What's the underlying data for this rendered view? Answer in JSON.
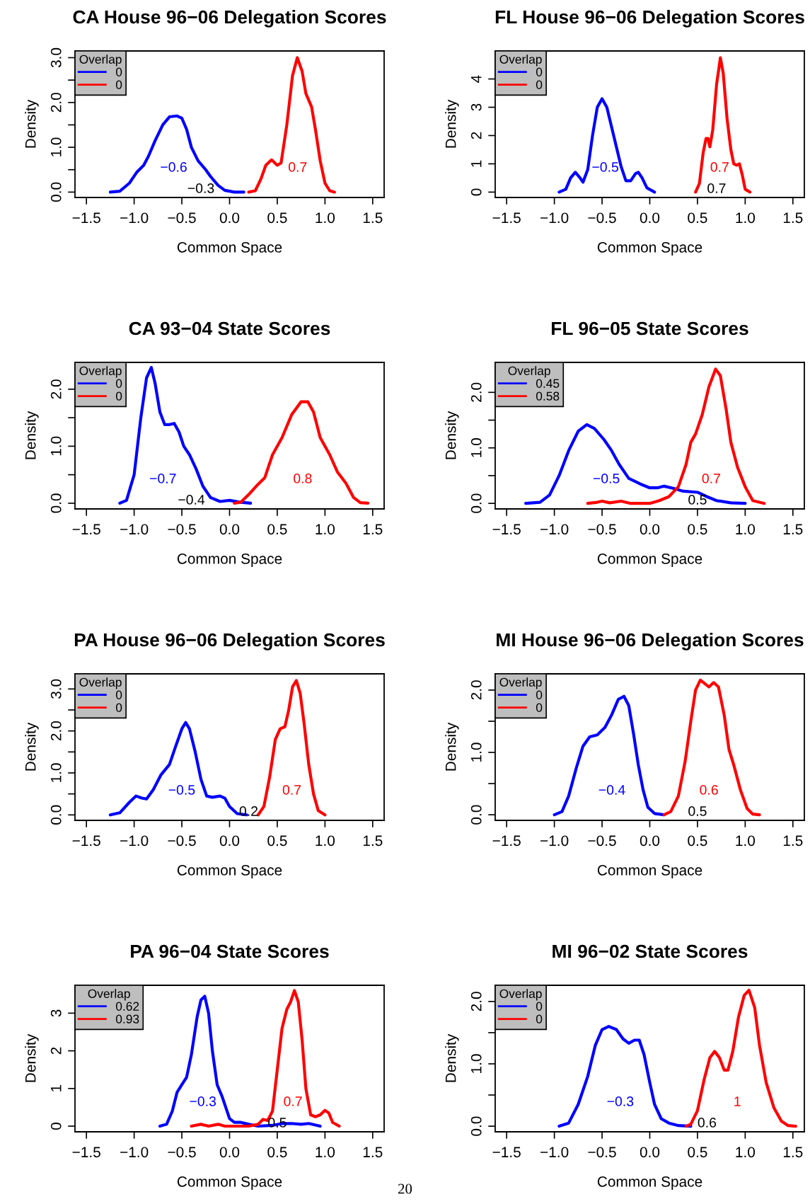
{
  "chart_data": [
    {
      "type": "line",
      "title": "CA House 96−06 Delegation Scores",
      "xlabel": "Common Space",
      "ylabel": "Density",
      "legend_title": "Overlap",
      "legend": "top left",
      "xlim": [
        -1.62,
        1.62
      ],
      "xticks": [
        {
          "value": -1.5,
          "label": "−1.5"
        },
        {
          "value": -1.0,
          "label": "−1.0"
        },
        {
          "value": -0.5,
          "label": "−0.5"
        },
        {
          "value": 0,
          "label": "0.0"
        },
        {
          "value": 0.5,
          "label": "0.5"
        },
        {
          "value": 1.0,
          "label": "1.0"
        },
        {
          "value": 1.5,
          "label": "1.5"
        }
      ],
      "ylim": [
        -0.12,
        3.15
      ],
      "yticks": [
        {
          "value": 0,
          "label": "0.0"
        },
        {
          "value": 0.5,
          "label": null
        },
        {
          "value": 1.0,
          "label": "1.0"
        },
        {
          "value": 1.5,
          "label": null
        },
        {
          "value": 2.0,
          "label": "2.0"
        },
        {
          "value": 2.5,
          "label": null
        },
        {
          "value": 3.0,
          "label": "3.0"
        }
      ],
      "series": [
        {
          "name": "0",
          "color": "#0000ff",
          "x": [
            -1.25,
            -1.15,
            -1.05,
            -0.97,
            -0.9,
            -0.85,
            -0.78,
            -0.7,
            -0.63,
            -0.55,
            -0.5,
            -0.45,
            -0.4,
            -0.33,
            -0.25,
            -0.2,
            -0.12,
            -0.05,
            0.05,
            0.15
          ],
          "values": [
            0,
            0.02,
            0.2,
            0.45,
            0.6,
            0.8,
            1.15,
            1.5,
            1.68,
            1.7,
            1.65,
            1.4,
            1.0,
            0.7,
            0.5,
            0.35,
            0.15,
            0.04,
            0.0,
            0
          ]
        },
        {
          "name": "0",
          "color": "#ff0000",
          "x": [
            0.2,
            0.27,
            0.33,
            0.38,
            0.44,
            0.5,
            0.54,
            0.6,
            0.66,
            0.71,
            0.76,
            0.8,
            0.86,
            0.9,
            0.95,
            1.0,
            1.05,
            1.1
          ],
          "values": [
            0,
            0.03,
            0.3,
            0.6,
            0.72,
            0.6,
            0.65,
            1.5,
            2.6,
            3.0,
            2.7,
            2.2,
            1.9,
            1.4,
            0.7,
            0.2,
            0.03,
            0
          ]
        }
      ],
      "annotations": [
        "−0.6",
        "0.7",
        "−0.3"
      ]
    },
    {
      "type": "line",
      "title": "FL House 96−06 Delegation Scores",
      "xlabel": "Common Space",
      "ylabel": "Density",
      "legend_title": "Overlap",
      "legend": "top left",
      "xlim": [
        -1.62,
        1.62
      ],
      "xticks": [
        {
          "value": -1.5,
          "label": "−1.5"
        },
        {
          "value": -1.0,
          "label": "−1.0"
        },
        {
          "value": -0.5,
          "label": "−0.5"
        },
        {
          "value": 0,
          "label": "0.0"
        },
        {
          "value": 0.5,
          "label": "0.5"
        },
        {
          "value": 1.0,
          "label": "1.0"
        },
        {
          "value": 1.5,
          "label": "1.5"
        }
      ],
      "ylim": [
        -0.19,
        4.99
      ],
      "yticks": [
        0,
        1,
        2,
        3,
        4
      ],
      "series": [
        {
          "name": "0",
          "color": "#0000ff",
          "x": [
            -0.95,
            -0.88,
            -0.83,
            -0.78,
            -0.73,
            -0.7,
            -0.65,
            -0.6,
            -0.55,
            -0.5,
            -0.45,
            -0.4,
            -0.35,
            -0.3,
            -0.25,
            -0.2,
            -0.15,
            -0.12,
            -0.08,
            -0.03,
            0.05
          ],
          "values": [
            0,
            0.1,
            0.5,
            0.7,
            0.5,
            0.35,
            0.8,
            2.0,
            3.0,
            3.3,
            3.0,
            2.3,
            1.6,
            0.9,
            0.4,
            0.4,
            0.65,
            0.7,
            0.5,
            0.15,
            0
          ]
        },
        {
          "name": "0",
          "color": "#ff0000",
          "x": [
            0.48,
            0.52,
            0.56,
            0.59,
            0.61,
            0.63,
            0.66,
            0.7,
            0.74,
            0.77,
            0.81,
            0.85,
            0.88,
            0.91,
            0.94,
            0.97,
            1.0,
            1.05
          ],
          "values": [
            0,
            0.3,
            1.4,
            1.9,
            1.9,
            1.6,
            2.2,
            3.8,
            4.75,
            4.2,
            2.6,
            1.5,
            1.0,
            0.95,
            1.0,
            0.6,
            0.1,
            0
          ]
        }
      ],
      "annotations": [
        "−0.5",
        "0.7",
        "0.7"
      ]
    },
    {
      "type": "line",
      "title": "CA 93−04 State Scores",
      "xlabel": "Common Space",
      "ylabel": "Density",
      "legend_title": "Overlap",
      "legend": "top left",
      "xlim": [
        -1.62,
        1.62
      ],
      "xticks": [
        {
          "value": -1.5,
          "label": "−1.5"
        },
        {
          "value": -1.0,
          "label": "−1.0"
        },
        {
          "value": -0.5,
          "label": "−0.5"
        },
        {
          "value": 0,
          "label": "0.0"
        },
        {
          "value": 0.5,
          "label": "0.5"
        },
        {
          "value": 1.0,
          "label": "1.0"
        },
        {
          "value": 1.5,
          "label": "1.5"
        }
      ],
      "ylim": [
        -0.1,
        2.47
      ],
      "yticks": [
        {
          "value": 0,
          "label": "0.0"
        },
        {
          "value": 0.5,
          "label": null
        },
        {
          "value": 1.0,
          "label": "1.0"
        },
        {
          "value": 1.5,
          "label": null
        },
        {
          "value": 2.0,
          "label": "2.0"
        }
      ],
      "series": [
        {
          "name": "0",
          "color": "#0000ff",
          "x": [
            -1.15,
            -1.08,
            -1.0,
            -0.93,
            -0.87,
            -0.82,
            -0.78,
            -0.73,
            -0.68,
            -0.63,
            -0.58,
            -0.53,
            -0.48,
            -0.42,
            -0.35,
            -0.28,
            -0.2,
            -0.1,
            0.0,
            0.1,
            0.22
          ],
          "values": [
            0,
            0.05,
            0.5,
            1.5,
            2.2,
            2.38,
            2.1,
            1.6,
            1.38,
            1.38,
            1.4,
            1.25,
            1.0,
            0.85,
            0.6,
            0.3,
            0.1,
            0.03,
            0.05,
            0.02,
            0
          ]
        },
        {
          "name": "0",
          "color": "#ff0000",
          "x": [
            0.05,
            0.12,
            0.2,
            0.28,
            0.37,
            0.45,
            0.55,
            0.65,
            0.75,
            0.82,
            0.88,
            0.95,
            1.05,
            1.13,
            1.22,
            1.3,
            1.37,
            1.45
          ],
          "values": [
            0,
            0.02,
            0.15,
            0.3,
            0.45,
            0.85,
            1.15,
            1.55,
            1.78,
            1.78,
            1.6,
            1.15,
            0.85,
            0.55,
            0.35,
            0.1,
            0.01,
            0
          ]
        }
      ],
      "annotations": [
        "−0.7",
        "0.8",
        "−0.4"
      ]
    },
    {
      "type": "line",
      "title": "FL 96−05 State Scores",
      "xlabel": "Common Space",
      "ylabel": "Density",
      "legend_title": "Overlap",
      "legend": "top left",
      "xlim": [
        -1.62,
        1.62
      ],
      "xticks": [
        {
          "value": -1.5,
          "label": "−1.5"
        },
        {
          "value": -1.0,
          "label": "−1.0"
        },
        {
          "value": -0.5,
          "label": "−0.5"
        },
        {
          "value": 0,
          "label": "0.0"
        },
        {
          "value": 0.5,
          "label": "0.5"
        },
        {
          "value": 1.0,
          "label": "1.0"
        },
        {
          "value": 1.5,
          "label": "1.5"
        }
      ],
      "ylim": [
        -0.1,
        2.54
      ],
      "yticks": [
        {
          "value": 0,
          "label": "0.0"
        },
        {
          "value": 0.5,
          "label": null
        },
        {
          "value": 1.0,
          "label": "1.0"
        },
        {
          "value": 1.5,
          "label": null
        },
        {
          "value": 2.0,
          "label": "2.0"
        }
      ],
      "series": [
        {
          "name": "0.45",
          "color": "#0000ff",
          "x": [
            -1.3,
            -1.15,
            -1.05,
            -0.95,
            -0.85,
            -0.75,
            -0.66,
            -0.58,
            -0.48,
            -0.4,
            -0.32,
            -0.22,
            -0.1,
            0.0,
            0.08,
            0.15,
            0.25,
            0.35,
            0.5,
            0.6,
            0.7,
            0.85,
            1.0
          ],
          "values": [
            0,
            0.02,
            0.15,
            0.5,
            0.95,
            1.3,
            1.42,
            1.35,
            1.15,
            0.95,
            0.7,
            0.45,
            0.35,
            0.28,
            0.28,
            0.31,
            0.27,
            0.22,
            0.2,
            0.12,
            0.05,
            0.01,
            0
          ]
        },
        {
          "name": "0.58",
          "color": "#ff0000",
          "x": [
            -0.65,
            -0.55,
            -0.5,
            -0.42,
            -0.3,
            -0.2,
            0.0,
            0.1,
            0.2,
            0.3,
            0.38,
            0.43,
            0.48,
            0.55,
            0.62,
            0.69,
            0.74,
            0.8,
            0.85,
            0.92,
            1.0,
            1.08,
            1.2
          ],
          "values": [
            0,
            0.02,
            0.04,
            0.01,
            0.04,
            0.0,
            0.0,
            0.05,
            0.12,
            0.3,
            0.7,
            1.1,
            1.25,
            1.6,
            2.1,
            2.42,
            2.3,
            1.7,
            1.1,
            0.65,
            0.3,
            0.05,
            0
          ]
        }
      ],
      "annotations": [
        "−0.5",
        "0.7",
        "0.5"
      ]
    },
    {
      "type": "line",
      "title": "PA House 96−06 Delegation Scores",
      "xlabel": "Common Space",
      "ylabel": "Density",
      "legend_title": "Overlap",
      "legend": "top left",
      "xlim": [
        -1.62,
        1.62
      ],
      "xticks": [
        {
          "value": -1.5,
          "label": "−1.5"
        },
        {
          "value": -1.0,
          "label": "−1.0"
        },
        {
          "value": -0.5,
          "label": "−0.5"
        },
        {
          "value": 0,
          "label": "0.0"
        },
        {
          "value": 0.5,
          "label": "0.5"
        },
        {
          "value": 1.0,
          "label": "1.0"
        },
        {
          "value": 1.5,
          "label": "1.5"
        }
      ],
      "ylim": [
        -0.13,
        3.36
      ],
      "yticks": [
        {
          "value": 0,
          "label": "0.0"
        },
        {
          "value": 0.5,
          "label": null
        },
        {
          "value": 1.0,
          "label": "1.0"
        },
        {
          "value": 1.5,
          "label": null
        },
        {
          "value": 2.0,
          "label": "2.0"
        },
        {
          "value": 2.5,
          "label": null
        },
        {
          "value": 3.0,
          "label": "3.0"
        }
      ],
      "series": [
        {
          "name": "0",
          "color": "#0000ff",
          "x": [
            -1.25,
            -1.15,
            -1.05,
            -0.98,
            -0.92,
            -0.87,
            -0.8,
            -0.72,
            -0.63,
            -0.57,
            -0.5,
            -0.46,
            -0.42,
            -0.36,
            -0.3,
            -0.24,
            -0.18,
            -0.1,
            -0.05,
            0.0,
            0.08,
            0.18
          ],
          "values": [
            0,
            0.05,
            0.3,
            0.45,
            0.4,
            0.38,
            0.6,
            0.95,
            1.2,
            1.6,
            2.05,
            2.2,
            2.05,
            1.5,
            0.85,
            0.45,
            0.42,
            0.45,
            0.4,
            0.2,
            0.03,
            0
          ]
        },
        {
          "name": "0",
          "color": "#ff0000",
          "x": [
            0.3,
            0.36,
            0.42,
            0.48,
            0.53,
            0.58,
            0.62,
            0.66,
            0.7,
            0.74,
            0.78,
            0.83,
            0.88,
            0.93,
            1.0
          ],
          "values": [
            0,
            0.2,
            0.9,
            1.8,
            2.05,
            2.1,
            2.5,
            3.05,
            3.2,
            2.9,
            2.2,
            1.2,
            0.5,
            0.1,
            0
          ]
        }
      ],
      "annotations": [
        "−0.5",
        "0.7",
        "0.2"
      ]
    },
    {
      "type": "line",
      "title": "MI House 96−06 Delegation Scores",
      "xlabel": "Common Space",
      "ylabel": "Density",
      "legend_title": "Overlap",
      "legend": "top left",
      "xlim": [
        -1.62,
        1.62
      ],
      "xticks": [
        {
          "value": -1.5,
          "label": "−1.5"
        },
        {
          "value": -1.0,
          "label": "−1.0"
        },
        {
          "value": -0.5,
          "label": "−0.5"
        },
        {
          "value": 0,
          "label": "0.0"
        },
        {
          "value": 0.5,
          "label": "0.5"
        },
        {
          "value": 1.0,
          "label": "1.0"
        },
        {
          "value": 1.5,
          "label": "1.5"
        }
      ],
      "ylim": [
        -0.09,
        2.26
      ],
      "yticks": [
        {
          "value": 0,
          "label": "0.0"
        },
        {
          "value": 0.5,
          "label": null
        },
        {
          "value": 1.0,
          "label": "1.0"
        },
        {
          "value": 1.5,
          "label": null
        },
        {
          "value": 2.0,
          "label": "2.0"
        }
      ],
      "series": [
        {
          "name": "0",
          "color": "#0000ff",
          "x": [
            -1.0,
            -0.92,
            -0.85,
            -0.77,
            -0.7,
            -0.63,
            -0.55,
            -0.47,
            -0.4,
            -0.33,
            -0.27,
            -0.22,
            -0.17,
            -0.12,
            -0.07,
            -0.02,
            0.05,
            0.15
          ],
          "values": [
            0,
            0.05,
            0.3,
            0.75,
            1.1,
            1.25,
            1.28,
            1.4,
            1.6,
            1.85,
            1.9,
            1.75,
            1.3,
            0.8,
            0.4,
            0.12,
            0.02,
            0
          ]
        },
        {
          "name": "0",
          "color": "#ff0000",
          "x": [
            0.15,
            0.22,
            0.3,
            0.37,
            0.43,
            0.48,
            0.53,
            0.58,
            0.62,
            0.67,
            0.72,
            0.78,
            0.83,
            0.88,
            0.95,
            1.02,
            1.08,
            1.15
          ],
          "values": [
            0,
            0.05,
            0.3,
            0.85,
            1.5,
            2.0,
            2.16,
            2.1,
            2.05,
            2.12,
            2.05,
            1.6,
            1.05,
            0.8,
            0.4,
            0.1,
            0.01,
            0
          ]
        }
      ],
      "annotations": [
        "−0.4",
        "0.6",
        "0.5"
      ]
    },
    {
      "type": "line",
      "title": "PA 96−04 State Scores",
      "xlabel": "Common Space",
      "ylabel": "Density",
      "legend_title": "Overlap",
      "legend": "top left",
      "xlim": [
        -1.62,
        1.62
      ],
      "xticks": [
        {
          "value": -1.5,
          "label": "−1.5"
        },
        {
          "value": -1.0,
          "label": "−1.0"
        },
        {
          "value": -0.5,
          "label": "−0.5"
        },
        {
          "value": 0,
          "label": "0.0"
        },
        {
          "value": 0.5,
          "label": "0.5"
        },
        {
          "value": 1.0,
          "label": "1.0"
        },
        {
          "value": 1.5,
          "label": "1.5"
        }
      ],
      "ylim": [
        -0.15,
        3.74
      ],
      "yticks": [
        0,
        1,
        2,
        3
      ],
      "series": [
        {
          "name": "0.62",
          "color": "#0000ff",
          "x": [
            -0.73,
            -0.66,
            -0.6,
            -0.55,
            -0.5,
            -0.45,
            -0.4,
            -0.34,
            -0.3,
            -0.26,
            -0.22,
            -0.18,
            -0.13,
            -0.08,
            -0.04,
            0.0,
            0.05,
            0.12,
            0.2,
            0.3,
            0.45,
            0.55,
            0.65,
            0.75,
            0.83,
            0.95
          ],
          "values": [
            0,
            0.05,
            0.4,
            0.9,
            1.1,
            1.3,
            1.9,
            2.9,
            3.35,
            3.45,
            3.0,
            2.0,
            1.1,
            0.8,
            0.5,
            0.2,
            0.1,
            0.1,
            0.05,
            0.0,
            0.02,
            0.07,
            0.07,
            0.05,
            0.07,
            0
          ]
        },
        {
          "name": "0.93",
          "color": "#ff0000",
          "x": [
            -0.4,
            -0.3,
            -0.22,
            -0.12,
            -0.05,
            0.1,
            0.2,
            0.3,
            0.35,
            0.4,
            0.45,
            0.5,
            0.55,
            0.6,
            0.64,
            0.68,
            0.72,
            0.76,
            0.8,
            0.85,
            0.9,
            0.95,
            1.0,
            1.04,
            1.08,
            1.15
          ],
          "values": [
            0,
            0.05,
            0.0,
            0.05,
            0.0,
            0.0,
            0.0,
            0.05,
            0.18,
            0.15,
            0.4,
            1.5,
            2.6,
            3.1,
            3.3,
            3.6,
            3.3,
            2.3,
            1.0,
            0.3,
            0.25,
            0.3,
            0.42,
            0.35,
            0.1,
            0
          ]
        }
      ],
      "annotations": [
        "−0.3",
        "0.7",
        "0.5"
      ]
    },
    {
      "type": "line",
      "title": "MI 96−02 State Scores",
      "xlabel": "Common Space",
      "ylabel": "Density",
      "legend_title": "Overlap",
      "legend": "top left",
      "xlim": [
        -1.62,
        1.62
      ],
      "xticks": [
        {
          "value": -1.5,
          "label": "−1.5"
        },
        {
          "value": -1.0,
          "label": "−1.0"
        },
        {
          "value": -0.5,
          "label": "−0.5"
        },
        {
          "value": 0,
          "label": "0.0"
        },
        {
          "value": 0.5,
          "label": "0.5"
        },
        {
          "value": 1.0,
          "label": "1.0"
        },
        {
          "value": 1.5,
          "label": "1.5"
        }
      ],
      "ylim": [
        -0.09,
        2.26
      ],
      "yticks": [
        {
          "value": 0,
          "label": "0.0"
        },
        {
          "value": 0.5,
          "label": null
        },
        {
          "value": 1.0,
          "label": "1.0"
        },
        {
          "value": 1.5,
          "label": null
        },
        {
          "value": 2.0,
          "label": "2.0"
        }
      ],
      "series": [
        {
          "name": "0",
          "color": "#0000ff",
          "x": [
            -0.95,
            -0.85,
            -0.75,
            -0.65,
            -0.57,
            -0.5,
            -0.43,
            -0.35,
            -0.28,
            -0.22,
            -0.16,
            -0.11,
            -0.06,
            0.0,
            0.05,
            0.12,
            0.2,
            0.3,
            0.43
          ],
          "values": [
            0,
            0.05,
            0.35,
            0.8,
            1.3,
            1.55,
            1.6,
            1.55,
            1.4,
            1.33,
            1.38,
            1.38,
            1.15,
            0.7,
            0.35,
            0.12,
            0.05,
            0.01,
            0
          ]
        },
        {
          "name": "0",
          "color": "#ff0000",
          "x": [
            0.38,
            0.43,
            0.5,
            0.57,
            0.63,
            0.68,
            0.73,
            0.78,
            0.82,
            0.87,
            0.93,
            0.99,
            1.04,
            1.1,
            1.15,
            1.22,
            1.3,
            1.38,
            1.45,
            1.53
          ],
          "values": [
            0,
            0.03,
            0.25,
            0.75,
            1.1,
            1.2,
            1.1,
            0.9,
            0.9,
            1.2,
            1.75,
            2.1,
            2.18,
            1.9,
            1.3,
            0.7,
            0.3,
            0.08,
            0.01,
            0
          ]
        }
      ],
      "annotations": [
        "−0.3",
        "1",
        "0.6",
        "20"
      ]
    }
  ]
}
